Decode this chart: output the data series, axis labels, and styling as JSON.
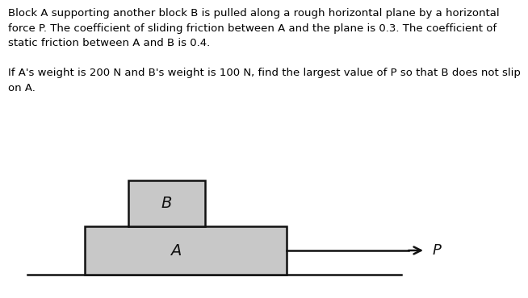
{
  "text_color": "#000000",
  "line1": "Block A supporting another block B is pulled along a rough horizontal plane by a horizontal",
  "line2": "force P. The coefficient of sliding friction between A and the plane is 0.3. The coefficient of",
  "line3": "static friction between A and B is 0.4.",
  "line4": "",
  "line5": "If A's weight is 200 N and B's weight is 100 N, find the largest value of P so that B does not slip",
  "line6": "on A.",
  "fig_bg": "#ffffff",
  "diagram_bg": "#c8c8c8",
  "block_edge_color": "#111111",
  "label_A": "A",
  "label_B": "B",
  "label_P": "P",
  "font_size_text": 9.5,
  "font_size_labels": 14,
  "font_size_P": 13,
  "line_width": 1.8
}
